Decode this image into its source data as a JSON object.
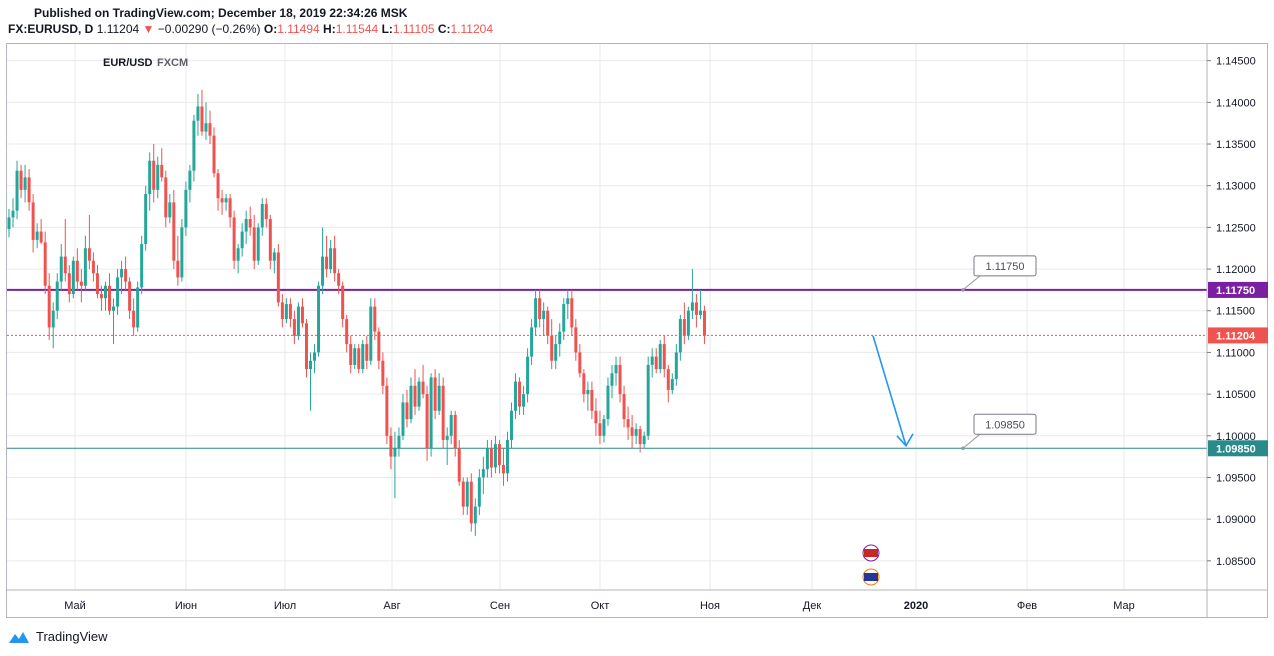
{
  "header": {
    "published": "Published on TradingView.com; December 18, 2019 22:34:26 MSK",
    "symbol_line": "FX:EURUSD, D",
    "last": "1.11204",
    "change": "−0.00290 (−0.26%)",
    "open_label": "O:",
    "open": "1.11494",
    "high_label": "H:",
    "high": "1.11544",
    "low_label": "L:",
    "low": "1.11105",
    "close_label": "C:",
    "close": "1.11204"
  },
  "footer": {
    "brand": "TradingView"
  },
  "colors": {
    "up": "#26a69a",
    "down": "#ef5350",
    "resistance": "#7b1fa2",
    "support": "#2a8a8a",
    "arrow": "#2196f3",
    "grid": "#e9eaed",
    "last_price": "#ef5350"
  },
  "chart_data": {
    "type": "candlestick",
    "title": "EUR/USD  FXCM",
    "source": "FXCM",
    "pair": "EUR/USD",
    "ylim": [
      1.0815,
      1.147
    ],
    "y_ticks": [
      "1.14500",
      "1.14000",
      "1.13500",
      "1.13000",
      "1.12500",
      "1.12000",
      "1.11500",
      "1.11000",
      "1.10500",
      "1.10000",
      "1.09500",
      "1.09000",
      "1.08500"
    ],
    "x_ticks": [
      "Май",
      "Июн",
      "Июл",
      "Авг",
      "Сен",
      "Окт",
      "Ноя",
      "Дек",
      "2020",
      "Фев",
      "Мар"
    ],
    "levels": [
      {
        "name": "resistance",
        "value": 1.1175,
        "label": "1.11750",
        "callout": "1.11750"
      },
      {
        "name": "support",
        "value": 1.0985,
        "label": "1.09850",
        "callout": "1.09850"
      }
    ],
    "last_price": {
      "value": 1.11204,
      "label": "1.11204"
    },
    "projection": {
      "from": 1.112,
      "to": 1.0988
    },
    "candles": [
      [
        1.1248,
        1.1272,
        1.1238,
        1.1262
      ],
      [
        1.1262,
        1.1285,
        1.125,
        1.127
      ],
      [
        1.127,
        1.133,
        1.126,
        1.1318
      ],
      [
        1.1318,
        1.1325,
        1.1285,
        1.1295
      ],
      [
        1.1295,
        1.1325,
        1.128,
        1.131
      ],
      [
        1.131,
        1.132,
        1.127,
        1.128
      ],
      [
        1.128,
        1.129,
        1.122,
        1.1235
      ],
      [
        1.1235,
        1.1255,
        1.1225,
        1.1245
      ],
      [
        1.1245,
        1.126,
        1.123,
        1.1232
      ],
      [
        1.1232,
        1.1245,
        1.117,
        1.118
      ],
      [
        1.118,
        1.1195,
        1.1115,
        1.113
      ],
      [
        1.113,
        1.116,
        1.1105,
        1.115
      ],
      [
        1.115,
        1.1195,
        1.114,
        1.1185
      ],
      [
        1.1185,
        1.123,
        1.1175,
        1.1215
      ],
      [
        1.1215,
        1.126,
        1.1185,
        1.1195
      ],
      [
        1.1195,
        1.1205,
        1.116,
        1.117
      ],
      [
        1.117,
        1.1215,
        1.1165,
        1.121
      ],
      [
        1.121,
        1.1225,
        1.1175,
        1.1185
      ],
      [
        1.1185,
        1.12,
        1.116,
        1.118
      ],
      [
        1.118,
        1.124,
        1.1175,
        1.1225
      ],
      [
        1.1225,
        1.1265,
        1.12,
        1.121
      ],
      [
        1.121,
        1.122,
        1.1185,
        1.1195
      ],
      [
        1.1195,
        1.1205,
        1.1165,
        1.117
      ],
      [
        1.117,
        1.118,
        1.115,
        1.1165
      ],
      [
        1.1165,
        1.1185,
        1.115,
        1.118
      ],
      [
        1.118,
        1.1195,
        1.1145,
        1.115
      ],
      [
        1.115,
        1.1165,
        1.111,
        1.1155
      ],
      [
        1.1155,
        1.12,
        1.1145,
        1.119
      ],
      [
        1.119,
        1.121,
        1.117,
        1.12
      ],
      [
        1.12,
        1.1215,
        1.1175,
        1.1185
      ],
      [
        1.1185,
        1.119,
        1.114,
        1.115
      ],
      [
        1.115,
        1.1165,
        1.112,
        1.113
      ],
      [
        1.113,
        1.1185,
        1.1125,
        1.1178
      ],
      [
        1.1178,
        1.124,
        1.117,
        1.123
      ],
      [
        1.123,
        1.13,
        1.1222,
        1.129
      ],
      [
        1.129,
        1.134,
        1.127,
        1.133
      ],
      [
        1.133,
        1.135,
        1.128,
        1.1295
      ],
      [
        1.1295,
        1.1335,
        1.1285,
        1.1325
      ],
      [
        1.1325,
        1.1345,
        1.1305,
        1.131
      ],
      [
        1.131,
        1.1318,
        1.125,
        1.1262
      ],
      [
        1.1262,
        1.129,
        1.1255,
        1.128
      ],
      [
        1.128,
        1.1295,
        1.12,
        1.121
      ],
      [
        1.121,
        1.124,
        1.118,
        1.119
      ],
      [
        1.119,
        1.126,
        1.1185,
        1.125
      ],
      [
        1.125,
        1.1305,
        1.124,
        1.1295
      ],
      [
        1.1295,
        1.1325,
        1.128,
        1.1318
      ],
      [
        1.1318,
        1.1385,
        1.1305,
        1.1378
      ],
      [
        1.1378,
        1.141,
        1.136,
        1.1395
      ],
      [
        1.1395,
        1.1415,
        1.136,
        1.1365
      ],
      [
        1.1365,
        1.14,
        1.1355,
        1.1375
      ],
      [
        1.1375,
        1.139,
        1.135,
        1.136
      ],
      [
        1.136,
        1.137,
        1.131,
        1.1315
      ],
      [
        1.1315,
        1.132,
        1.127,
        1.1285
      ],
      [
        1.1285,
        1.1295,
        1.1265,
        1.128
      ],
      [
        1.128,
        1.129,
        1.127,
        1.1285
      ],
      [
        1.1285,
        1.129,
        1.125,
        1.1262
      ],
      [
        1.1262,
        1.127,
        1.12,
        1.121
      ],
      [
        1.121,
        1.123,
        1.1195,
        1.1225
      ],
      [
        1.1225,
        1.1255,
        1.1215,
        1.1245
      ],
      [
        1.1245,
        1.127,
        1.123,
        1.126
      ],
      [
        1.126,
        1.1275,
        1.124,
        1.125
      ],
      [
        1.125,
        1.1265,
        1.12,
        1.121
      ],
      [
        1.121,
        1.1255,
        1.1205,
        1.125
      ],
      [
        1.125,
        1.1285,
        1.124,
        1.1278
      ],
      [
        1.1278,
        1.1285,
        1.125,
        1.126
      ],
      [
        1.126,
        1.1265,
        1.12,
        1.121
      ],
      [
        1.121,
        1.1225,
        1.1195,
        1.122
      ],
      [
        1.122,
        1.123,
        1.1155,
        1.116
      ],
      [
        1.116,
        1.117,
        1.113,
        1.114
      ],
      [
        1.114,
        1.1165,
        1.1135,
        1.1158
      ],
      [
        1.1158,
        1.1165,
        1.113,
        1.114
      ],
      [
        1.114,
        1.115,
        1.111,
        1.112
      ],
      [
        1.112,
        1.116,
        1.1115,
        1.1155
      ],
      [
        1.1155,
        1.1165,
        1.113,
        1.1135
      ],
      [
        1.1135,
        1.114,
        1.107,
        1.108
      ],
      [
        1.108,
        1.11,
        1.103,
        1.109
      ],
      [
        1.109,
        1.111,
        1.1075,
        1.11
      ],
      [
        1.11,
        1.1185,
        1.1095,
        1.118
      ],
      [
        1.118,
        1.125,
        1.117,
        1.1215
      ],
      [
        1.1215,
        1.124,
        1.119,
        1.12
      ],
      [
        1.12,
        1.1235,
        1.1195,
        1.1225
      ],
      [
        1.1225,
        1.124,
        1.1185,
        1.1195
      ],
      [
        1.1195,
        1.12,
        1.117,
        1.118
      ],
      [
        1.118,
        1.1185,
        1.113,
        1.114
      ],
      [
        1.114,
        1.1145,
        1.11,
        1.111
      ],
      [
        1.111,
        1.112,
        1.1075,
        1.1085
      ],
      [
        1.1085,
        1.111,
        1.108,
        1.1105
      ],
      [
        1.1105,
        1.111,
        1.1075,
        1.108
      ],
      [
        1.108,
        1.1115,
        1.1075,
        1.111
      ],
      [
        1.111,
        1.112,
        1.108,
        1.109
      ],
      [
        1.109,
        1.1165,
        1.1085,
        1.1155
      ],
      [
        1.1155,
        1.1165,
        1.1115,
        1.1125
      ],
      [
        1.1125,
        1.113,
        1.108,
        1.109
      ],
      [
        1.109,
        1.11,
        1.105,
        1.106
      ],
      [
        1.106,
        1.107,
        1.099,
        1.1
      ],
      [
        1.1,
        1.101,
        1.096,
        1.0975
      ],
      [
        1.0975,
        1.1005,
        1.0925,
        1.0985
      ],
      [
        1.0985,
        1.101,
        1.0975,
        1.1
      ],
      [
        1.1,
        1.105,
        1.0995,
        1.104
      ],
      [
        1.104,
        1.1055,
        1.101,
        1.102
      ],
      [
        1.102,
        1.107,
        1.1015,
        1.106
      ],
      [
        1.106,
        1.108,
        1.1025,
        1.1035
      ],
      [
        1.1035,
        1.107,
        1.103,
        1.1065
      ],
      [
        1.1065,
        1.1085,
        1.1045,
        1.105
      ],
      [
        1.105,
        1.106,
        1.097,
        1.0985
      ],
      [
        1.0985,
        1.1075,
        1.0975,
        1.107
      ],
      [
        1.107,
        1.108,
        1.102,
        1.103
      ],
      [
        1.103,
        1.1075,
        1.1025,
        1.106
      ],
      [
        1.106,
        1.107,
        1.0985,
        1.0995
      ],
      [
        1.0995,
        1.101,
        1.0965,
        1.1
      ],
      [
        1.1,
        1.103,
        1.099,
        1.1025
      ],
      [
        1.1025,
        1.103,
        1.0975,
        1.0985
      ],
      [
        1.0985,
        1.0995,
        1.094,
        1.0945
      ],
      [
        1.0945,
        1.095,
        1.0905,
        1.0915
      ],
      [
        1.0915,
        1.095,
        1.0905,
        1.0945
      ],
      [
        1.0945,
        1.0955,
        1.0885,
        1.0895
      ],
      [
        1.0895,
        1.0925,
        1.088,
        1.0915
      ],
      [
        1.0915,
        1.096,
        1.0905,
        1.095
      ],
      [
        1.095,
        1.0975,
        1.093,
        1.096
      ],
      [
        1.096,
        1.0995,
        1.095,
        1.0985
      ],
      [
        1.0985,
        1.0995,
        1.095,
        1.0962
      ],
      [
        1.0962,
        1.1,
        1.0955,
        1.099
      ],
      [
        1.099,
        1.0995,
        1.0955,
        1.0965
      ],
      [
        1.0965,
        1.0985,
        1.094,
        1.0955
      ],
      [
        1.0955,
        1.1005,
        1.0945,
        1.0995
      ],
      [
        1.0995,
        1.104,
        1.0985,
        1.103
      ],
      [
        1.103,
        1.1075,
        1.102,
        1.1065
      ],
      [
        1.1065,
        1.107,
        1.1025,
        1.1035
      ],
      [
        1.1035,
        1.106,
        1.1025,
        1.105
      ],
      [
        1.105,
        1.1105,
        1.104,
        1.1095
      ],
      [
        1.1095,
        1.114,
        1.1085,
        1.113
      ],
      [
        1.113,
        1.1175,
        1.112,
        1.1165
      ],
      [
        1.1165,
        1.1175,
        1.113,
        1.114
      ],
      [
        1.114,
        1.116,
        1.112,
        1.115
      ],
      [
        1.115,
        1.1155,
        1.111,
        1.112
      ],
      [
        1.112,
        1.114,
        1.108,
        1.109
      ],
      [
        1.109,
        1.112,
        1.108,
        1.111
      ],
      [
        1.111,
        1.1135,
        1.1095,
        1.1125
      ],
      [
        1.1125,
        1.1165,
        1.1115,
        1.1158
      ],
      [
        1.1158,
        1.1175,
        1.114,
        1.1165
      ],
      [
        1.1165,
        1.1175,
        1.112,
        1.113
      ],
      [
        1.113,
        1.114,
        1.109,
        1.11
      ],
      [
        1.11,
        1.111,
        1.107,
        1.1075
      ],
      [
        1.1075,
        1.108,
        1.104,
        1.105
      ],
      [
        1.105,
        1.1065,
        1.103,
        1.1055
      ],
      [
        1.1055,
        1.1065,
        1.102,
        1.103
      ],
      [
        1.103,
        1.1045,
        1.1,
        1.1015
      ],
      [
        1.1015,
        1.103,
        1.099,
        1.1
      ],
      [
        1.1,
        1.1025,
        1.0992,
        1.102
      ],
      [
        1.102,
        1.107,
        1.1012,
        1.106
      ],
      [
        1.106,
        1.1085,
        1.1045,
        1.1075
      ],
      [
        1.1075,
        1.1095,
        1.106,
        1.1085
      ],
      [
        1.1085,
        1.1095,
        1.104,
        1.105
      ],
      [
        1.105,
        1.106,
        1.101,
        1.102
      ],
      [
        1.102,
        1.1035,
        1.0995,
        1.101
      ],
      [
        1.101,
        1.1025,
        1.0985,
        1.1
      ],
      [
        1.1,
        1.1015,
        1.099,
        1.1008
      ],
      [
        1.1008,
        1.1012,
        1.098,
        1.099
      ],
      [
        1.099,
        1.1005,
        1.0985,
        1.1
      ],
      [
        1.1,
        1.1095,
        1.0995,
        1.1085
      ],
      [
        1.1085,
        1.1105,
        1.107,
        1.1095
      ],
      [
        1.1095,
        1.1105,
        1.1075,
        1.108
      ],
      [
        1.108,
        1.1115,
        1.1075,
        1.111
      ],
      [
        1.111,
        1.112,
        1.107,
        1.108
      ],
      [
        1.108,
        1.1085,
        1.104,
        1.1055
      ],
      [
        1.1055,
        1.1075,
        1.105,
        1.1068
      ],
      [
        1.1068,
        1.111,
        1.106,
        1.11
      ],
      [
        1.11,
        1.1145,
        1.109,
        1.114
      ],
      [
        1.114,
        1.116,
        1.111,
        1.112
      ],
      [
        1.112,
        1.1155,
        1.1115,
        1.115
      ],
      [
        1.115,
        1.12,
        1.114,
        1.116
      ],
      [
        1.116,
        1.117,
        1.113,
        1.1145
      ],
      [
        1.1145,
        1.1175,
        1.114,
        1.115
      ],
      [
        1.115,
        1.1156,
        1.111,
        1.112
      ]
    ]
  }
}
